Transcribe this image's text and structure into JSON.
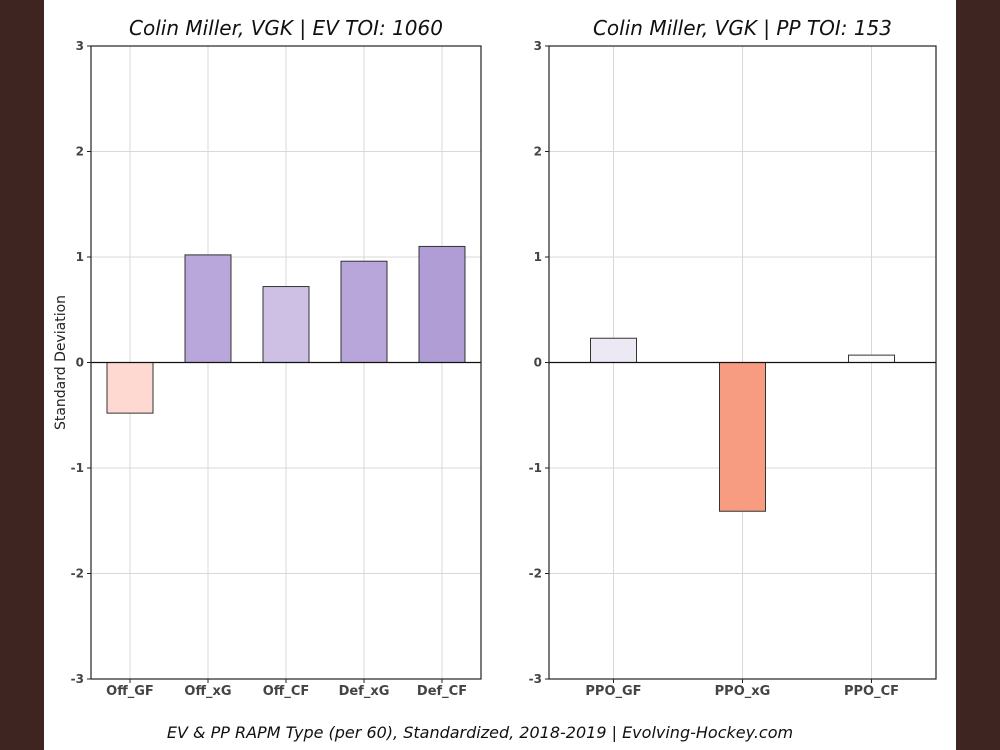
{
  "footer": "EV & PP RAPM Type (per 60), Standardized, 2018-2019    |    Evolving-Hockey.com",
  "chart_data": [
    {
      "type": "bar",
      "title": "Colin Miller, VGK  |  EV TOI: 1060",
      "ylabel": "Standard Deviation",
      "xlabel": "",
      "ylim": [
        -3,
        3
      ],
      "yticks": [
        3,
        2,
        1,
        0,
        -1,
        -2,
        -3
      ],
      "grid": true,
      "categories": [
        "Off_GF",
        "Off_xG",
        "Off_CF",
        "Def_xG",
        "Def_CF"
      ],
      "values": [
        -0.48,
        1.02,
        0.72,
        0.96,
        1.1
      ],
      "colors": [
        "#fdd9d1",
        "#b9a6da",
        "#cdc0e4",
        "#b8a5d9",
        "#b09dd6"
      ]
    },
    {
      "type": "bar",
      "title": "Colin Miller, VGK  |  PP TOI: 153",
      "ylabel": "",
      "xlabel": "",
      "ylim": [
        -3,
        3
      ],
      "yticks": [
        3,
        2,
        1,
        0,
        -1,
        -2,
        -3
      ],
      "grid": true,
      "categories": [
        "PPO_GF",
        "PPO_xG",
        "PPO_CF"
      ],
      "values": [
        0.23,
        -1.41,
        0.07
      ],
      "colors": [
        "#ece8f4",
        "#f79c80",
        "#fbfafc"
      ]
    }
  ]
}
